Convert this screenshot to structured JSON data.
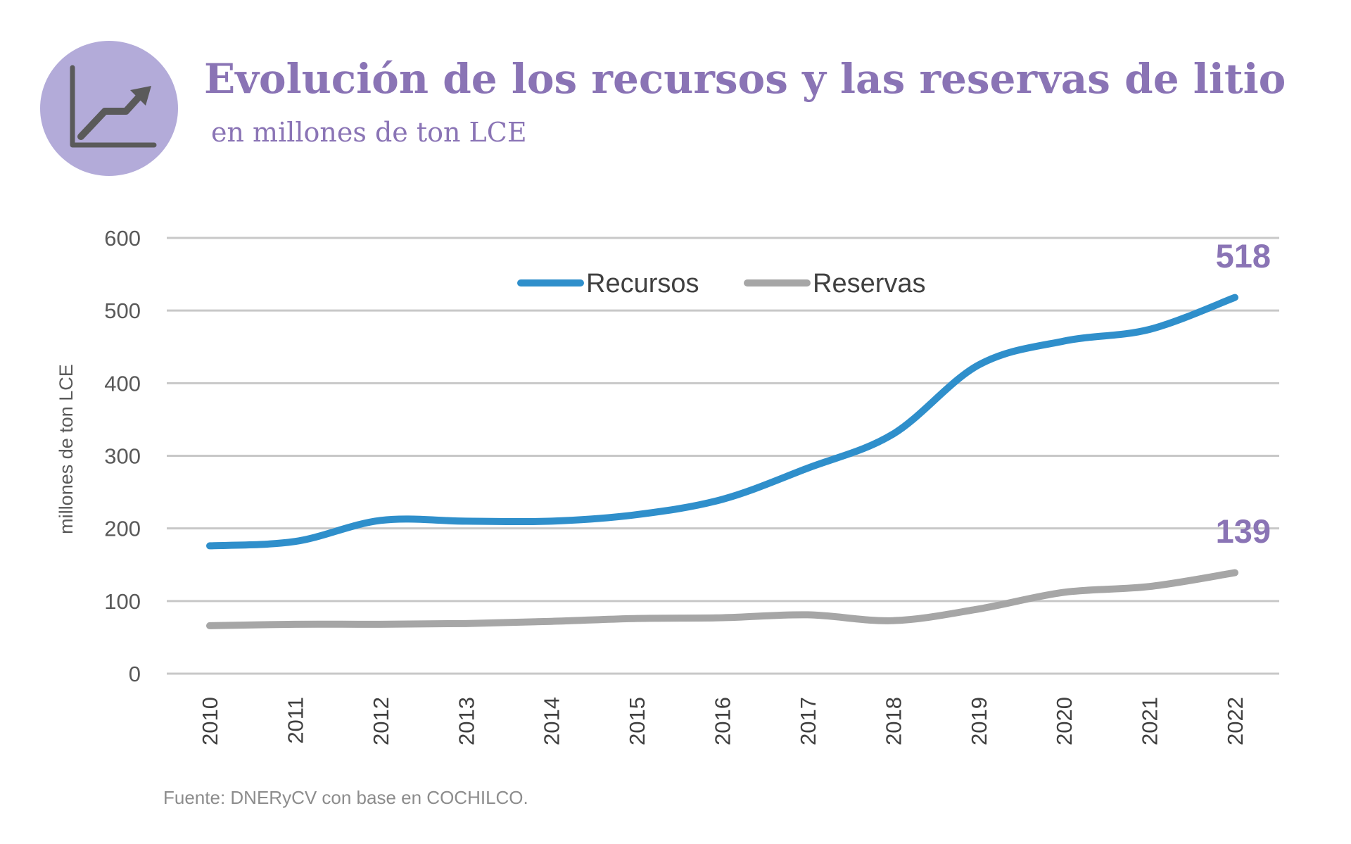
{
  "header": {
    "title": "Evolución de los recursos y las reservas de litio",
    "subtitle": "en millones de ton LCE",
    "icon": "line-chart-trend-icon"
  },
  "colors": {
    "accent": "#8a74b5",
    "badge": "#b3abd9",
    "recursos": "#2f8fcb",
    "reservas": "#a6a6a6",
    "grid": "#c8c8c8",
    "axis_text": "#595959"
  },
  "chart_data": {
    "type": "line",
    "title": "Evolución de los recursos y las reservas de litio",
    "subtitle": "en millones de ton LCE",
    "xlabel": "",
    "ylabel": "millones de ton LCE",
    "ylim": [
      0,
      600
    ],
    "yticks": [
      "0",
      "100",
      "200",
      "300",
      "400",
      "500",
      "600"
    ],
    "categories": [
      "2010",
      "2011",
      "2012",
      "2013",
      "2014",
      "2015",
      "2016",
      "2017",
      "2018",
      "2019",
      "2020",
      "2021",
      "2022"
    ],
    "series": [
      {
        "name": "Recursos",
        "color": "#2f8fcb",
        "values": [
          176,
          182,
          211,
          210,
          210,
          219,
          240,
          283,
          330,
          425,
          458,
          474,
          518
        ],
        "end_label": "518"
      },
      {
        "name": "Reservas",
        "color": "#a6a6a6",
        "values": [
          66,
          68,
          68,
          69,
          72,
          76,
          77,
          81,
          73,
          89,
          112,
          120,
          139
        ],
        "end_label": "139"
      }
    ],
    "legend_position": "top-center",
    "grid": true
  },
  "footer": {
    "source": "Fuente:  DNERyCV con base en COCHILCO."
  }
}
